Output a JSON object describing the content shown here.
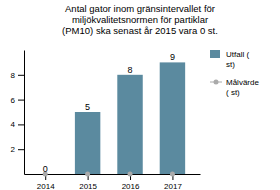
{
  "chart_data": {
    "type": "bar",
    "title": "Antal gator inom gränsintervallet för\nmiljökvalitetsnormen för partiklar\n(PM10) ska senast år 2015 vara 0 st.",
    "x": [
      2014,
      2015,
      2016,
      2017
    ],
    "xlim": [
      2013.5,
      2017.65
    ],
    "xticks": [
      2014,
      2015,
      2016,
      2017
    ],
    "series": [
      {
        "name": "Utfall (\nst)",
        "type": "bar",
        "color": "#5b8a9f",
        "values": [
          0,
          5,
          8,
          9
        ]
      },
      {
        "name": "Målvärde\n( st)",
        "type": "scatter",
        "marker": "circle",
        "color": "#aaaaaa",
        "values": [
          0,
          0,
          0,
          0
        ]
      }
    ],
    "ylim": [
      0,
      10
    ],
    "yticks": [
      2,
      4,
      6,
      8
    ],
    "data_labels": true,
    "grid": false,
    "legend": "right"
  }
}
